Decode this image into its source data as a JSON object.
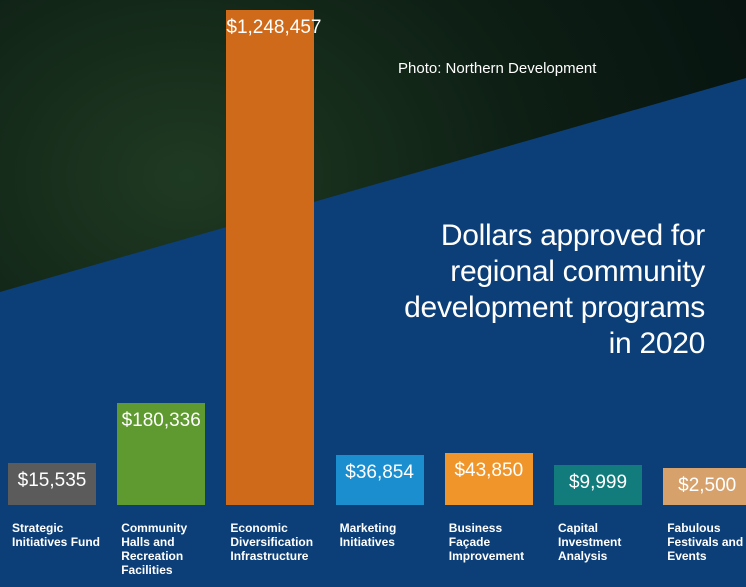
{
  "chart_data": {
    "type": "bar",
    "title": "Dollars approved for regional community development programs in 2020",
    "photo_credit": "Photo: Northern Development",
    "categories": [
      "Strategic Initiatives Fund",
      "Community Halls and Recreation Facilities",
      "Economic Diversification Infrastructure",
      "Marketing Initiatives",
      "Business Façade Improvement",
      "Capital Investment Analysis",
      "Fabulous Festivals and Events"
    ],
    "values": [
      15535,
      180336,
      1248457,
      36854,
      43850,
      9999,
      2500
    ],
    "value_labels": [
      "$15,535",
      "$180,336",
      "$1,248,457",
      "$36,854",
      "$43,850",
      "$9,999",
      "$2,500"
    ],
    "colors": [
      "#5b5b5b",
      "#5e9a2f",
      "#d06a1b",
      "#1a8ecf",
      "#ef952a",
      "#127b7c",
      "#d7a16c"
    ]
  }
}
